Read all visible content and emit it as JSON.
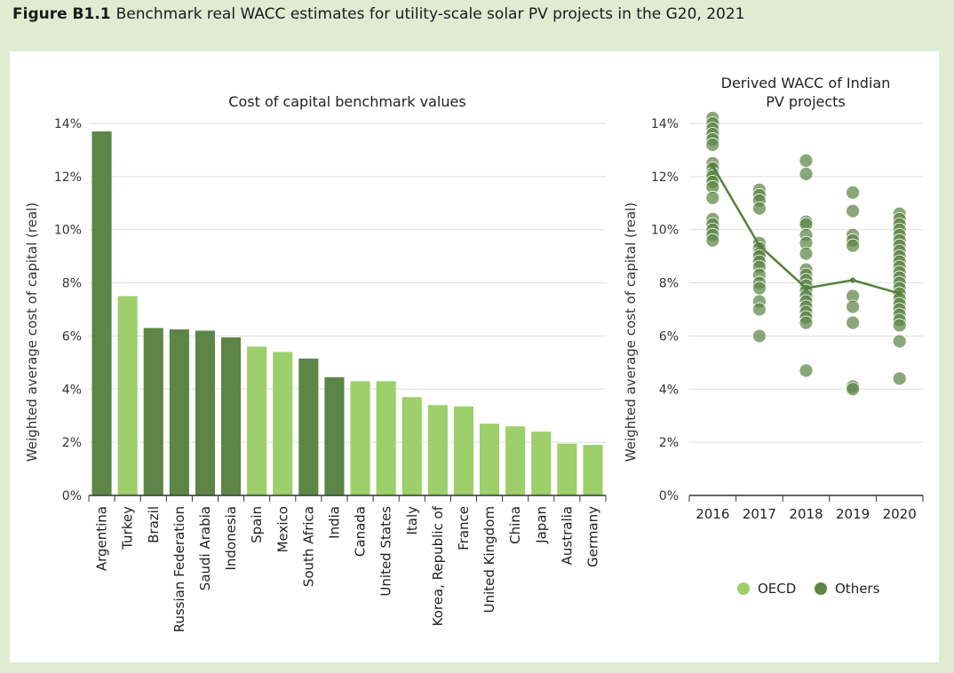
{
  "figure": {
    "number": "Figure B1.1",
    "title": "Benchmark real WACC estimates for utility-scale solar PV projects in the G20, 2021"
  },
  "colors": {
    "oecd": "#9dcf6b",
    "others": "#5d8545",
    "avg_line": "#55803c",
    "grid": "#dddddd"
  },
  "legend": {
    "oecd": "OECD",
    "others": "Others"
  },
  "chart_data": [
    {
      "type": "bar",
      "title": "Cost of capital benchmark values",
      "ylabel": "Weighted average cost of capital (real)",
      "ylim": [
        0,
        14
      ],
      "yticks": [
        "0%",
        "2%",
        "4%",
        "6%",
        "8%",
        "10%",
        "12%",
        "14%"
      ],
      "categories": [
        "Argentina",
        "Turkey",
        "Brazil",
        "Russian Federation",
        "Saudi Arabia",
        "Indonesia",
        "Spain",
        "Mexico",
        "South Africa",
        "India",
        "Canada",
        "United States",
        "Italy",
        "Korea, Republic of",
        "France",
        "United Kingdom",
        "China",
        "Japan",
        "Australia",
        "Germany"
      ],
      "values": [
        13.7,
        7.5,
        6.3,
        6.25,
        6.2,
        5.95,
        5.6,
        5.4,
        5.15,
        4.45,
        4.3,
        4.3,
        3.7,
        3.4,
        3.35,
        2.7,
        2.6,
        2.4,
        1.95,
        1.9
      ],
      "groups": [
        "Others",
        "OECD",
        "Others",
        "Others",
        "Others",
        "Others",
        "OECD",
        "OECD",
        "Others",
        "Others",
        "OECD",
        "OECD",
        "OECD",
        "OECD",
        "OECD",
        "OECD",
        "OECD",
        "OECD",
        "OECD",
        "OECD"
      ]
    },
    {
      "type": "scatter",
      "title": "Derived WACC of Indian PV projects",
      "ylabel": "Weighted average cost of capital (real)",
      "ylim": [
        0,
        14
      ],
      "yticks": [
        "0%",
        "2%",
        "4%",
        "6%",
        "8%",
        "10%",
        "12%",
        "14%"
      ],
      "x": [
        "2016",
        "2017",
        "2018",
        "2019",
        "2020"
      ],
      "points": {
        "2016": [
          14.2,
          14.0,
          13.8,
          13.6,
          13.4,
          13.2,
          12.5,
          12.3,
          12.1,
          12.0,
          11.8,
          11.6,
          11.2,
          10.4,
          10.2,
          10.0,
          9.8,
          9.6
        ],
        "2017": [
          11.5,
          11.3,
          11.1,
          10.8,
          9.5,
          9.3,
          9.1,
          9.0,
          8.8,
          8.6,
          8.3,
          8.0,
          7.8,
          7.3,
          7.0,
          6.0
        ],
        "2018": [
          12.6,
          12.1,
          10.3,
          10.2,
          9.8,
          9.5,
          9.1,
          8.5,
          8.3,
          8.1,
          7.9,
          7.7,
          7.5,
          7.3,
          7.1,
          6.9,
          6.7,
          6.5,
          4.7
        ],
        "2019": [
          11.4,
          10.7,
          9.8,
          9.6,
          9.4,
          7.5,
          7.1,
          6.5,
          4.1,
          4.0
        ],
        "2020": [
          10.6,
          10.4,
          10.2,
          10.0,
          9.8,
          9.6,
          9.4,
          9.2,
          9.0,
          8.8,
          8.6,
          8.4,
          8.2,
          8.0,
          7.8,
          7.6,
          7.4,
          7.2,
          7.0,
          6.8,
          6.6,
          6.4,
          5.8,
          4.4
        ]
      },
      "line": {
        "name": "average",
        "values": [
          12.4,
          9.4,
          7.8,
          8.1,
          7.6
        ]
      },
      "legend_position": "bottom"
    }
  ]
}
